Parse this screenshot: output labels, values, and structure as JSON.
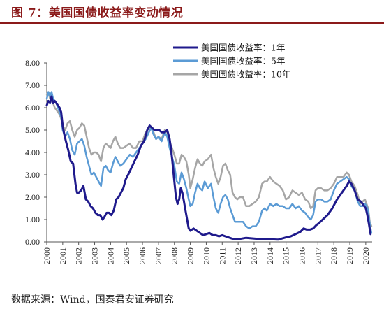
{
  "header": {
    "title": "图 7：美国国债收益率变动情况"
  },
  "footer": {
    "source": "数据来源：Wind，国泰君安证券研究"
  },
  "chart_data": {
    "type": "line",
    "title": "",
    "xlabel": "",
    "ylabel": "",
    "ylim": [
      0,
      8
    ],
    "xlim": [
      2000,
      2020.4
    ],
    "yticks": [
      "0.00",
      "1.00",
      "2.00",
      "3.00",
      "4.00",
      "5.00",
      "6.00",
      "7.00",
      "8.00"
    ],
    "xticks": [
      "2000",
      "2001",
      "2002",
      "2003",
      "2004",
      "2005",
      "2006",
      "2007",
      "2008",
      "2009",
      "2010",
      "2011",
      "2012",
      "2013",
      "2014",
      "2015",
      "2016",
      "2017",
      "2018",
      "2019",
      "2020"
    ],
    "legend_position": "top-right",
    "grid": false,
    "series": [
      {
        "name": "美国国债收益率：1年",
        "color": "#1f1a8c",
        "x": [
          2000.0,
          2000.1,
          2000.2,
          2000.3,
          2000.4,
          2000.5,
          2000.6,
          2000.7,
          2000.8,
          2000.9,
          2001.0,
          2001.1,
          2001.2,
          2001.35,
          2001.5,
          2001.65,
          2001.8,
          2001.9,
          2002.0,
          2002.15,
          2002.3,
          2002.45,
          2002.6,
          2002.75,
          2002.9,
          2003.05,
          2003.2,
          2003.35,
          2003.5,
          2003.6,
          2003.75,
          2003.9,
          2004.05,
          2004.2,
          2004.35,
          2004.5,
          2004.65,
          2004.8,
          2004.95,
          2005.1,
          2005.3,
          2005.5,
          2005.7,
          2005.9,
          2006.1,
          2006.3,
          2006.45,
          2006.6,
          2006.75,
          2006.9,
          2007.05,
          2007.2,
          2007.4,
          2007.55,
          2007.7,
          2007.8,
          2007.9,
          2008.0,
          2008.1,
          2008.2,
          2008.3,
          2008.4,
          2008.5,
          2008.6,
          2008.7,
          2008.8,
          2008.9,
          2009.0,
          2009.2,
          2009.4,
          2009.6,
          2009.8,
          2010.0,
          2010.2,
          2010.4,
          2010.6,
          2010.8,
          2011.0,
          2011.2,
          2011.4,
          2011.6,
          2011.8,
          2012.0,
          2012.5,
          2013.0,
          2013.5,
          2014.0,
          2014.5,
          2015.0,
          2015.3,
          2015.6,
          2015.9,
          2016.1,
          2016.3,
          2016.5,
          2016.7,
          2016.9,
          2017.0,
          2017.3,
          2017.6,
          2017.9,
          2018.2,
          2018.5,
          2018.8,
          2018.95,
          2019.1,
          2019.3,
          2019.5,
          2019.7,
          2019.9,
          2020.0,
          2020.1,
          2020.2,
          2020.3
        ],
        "values": [
          6.1,
          6.3,
          6.2,
          6.5,
          6.2,
          6.3,
          6.2,
          6.1,
          6.0,
          5.8,
          5.2,
          4.8,
          4.5,
          4.1,
          3.6,
          3.5,
          2.6,
          2.2,
          2.2,
          2.3,
          2.5,
          1.9,
          1.8,
          1.6,
          1.5,
          1.3,
          1.2,
          1.2,
          1.0,
          1.1,
          1.3,
          1.3,
          1.2,
          1.4,
          1.9,
          2.0,
          2.2,
          2.4,
          2.8,
          3.0,
          3.3,
          3.6,
          3.9,
          4.3,
          4.5,
          5.0,
          5.2,
          5.1,
          5.0,
          5.0,
          5.0,
          4.9,
          4.9,
          5.0,
          4.6,
          4.1,
          3.4,
          2.7,
          2.0,
          1.7,
          1.9,
          2.4,
          2.2,
          1.8,
          1.4,
          1.0,
          0.6,
          0.5,
          0.6,
          0.5,
          0.4,
          0.3,
          0.35,
          0.4,
          0.3,
          0.3,
          0.25,
          0.3,
          0.25,
          0.2,
          0.15,
          0.12,
          0.12,
          0.18,
          0.15,
          0.12,
          0.12,
          0.1,
          0.2,
          0.25,
          0.35,
          0.45,
          0.6,
          0.55,
          0.55,
          0.6,
          0.75,
          0.8,
          1.0,
          1.2,
          1.5,
          1.9,
          2.2,
          2.5,
          2.7,
          2.6,
          2.3,
          1.9,
          1.8,
          1.6,
          1.5,
          1.2,
          0.8,
          0.35
        ]
      },
      {
        "name": "美国国债收益率：5年",
        "color": "#5b9bd5",
        "x": [
          2000.0,
          2000.1,
          2000.2,
          2000.3,
          2000.4,
          2000.5,
          2000.6,
          2000.7,
          2000.8,
          2000.9,
          2001.0,
          2001.15,
          2001.3,
          2001.45,
          2001.6,
          2001.75,
          2001.9,
          2002.05,
          2002.2,
          2002.35,
          2002.5,
          2002.65,
          2002.8,
          2002.95,
          2003.1,
          2003.25,
          2003.4,
          2003.55,
          2003.7,
          2003.85,
          2004.0,
          2004.15,
          2004.3,
          2004.45,
          2004.6,
          2004.8,
          2005.0,
          2005.2,
          2005.4,
          2005.6,
          2005.8,
          2006.0,
          2006.2,
          2006.4,
          2006.55,
          2006.7,
          2006.85,
          2007.0,
          2007.2,
          2007.4,
          2007.55,
          2007.7,
          2007.85,
          2008.0,
          2008.15,
          2008.3,
          2008.45,
          2008.6,
          2008.75,
          2008.9,
          2009.0,
          2009.15,
          2009.3,
          2009.45,
          2009.6,
          2009.75,
          2009.9,
          2010.1,
          2010.3,
          2010.45,
          2010.6,
          2010.75,
          2010.9,
          2011.05,
          2011.2,
          2011.35,
          2011.5,
          2011.65,
          2011.8,
          2011.95,
          2012.1,
          2012.3,
          2012.5,
          2012.7,
          2012.9,
          2013.1,
          2013.3,
          2013.5,
          2013.65,
          2013.8,
          2014.0,
          2014.2,
          2014.4,
          2014.6,
          2014.8,
          2015.0,
          2015.2,
          2015.4,
          2015.6,
          2015.8,
          2016.0,
          2016.2,
          2016.4,
          2016.55,
          2016.7,
          2016.85,
          2017.0,
          2017.2,
          2017.4,
          2017.6,
          2017.8,
          2018.0,
          2018.2,
          2018.4,
          2018.6,
          2018.8,
          2018.95,
          2019.1,
          2019.3,
          2019.5,
          2019.65,
          2019.8,
          2019.95,
          2020.05,
          2020.15,
          2020.25,
          2020.35
        ],
        "values": [
          6.4,
          6.7,
          6.5,
          6.7,
          6.4,
          6.3,
          6.2,
          6.0,
          5.8,
          5.6,
          5.0,
          4.7,
          4.9,
          4.6,
          4.1,
          3.9,
          4.4,
          4.5,
          4.6,
          4.3,
          3.8,
          3.4,
          3.0,
          3.1,
          2.9,
          2.7,
          2.5,
          3.3,
          3.4,
          3.2,
          3.1,
          3.5,
          3.8,
          3.6,
          3.4,
          3.5,
          3.7,
          3.9,
          3.8,
          4.0,
          4.2,
          4.4,
          4.6,
          4.9,
          5.1,
          4.8,
          4.6,
          4.7,
          4.5,
          4.9,
          4.7,
          4.2,
          3.8,
          3.4,
          2.7,
          2.6,
          3.1,
          2.8,
          2.4,
          1.9,
          1.6,
          1.7,
          2.2,
          2.6,
          2.4,
          2.3,
          2.7,
          2.4,
          2.6,
          2.0,
          1.5,
          1.3,
          1.7,
          2.0,
          2.1,
          1.9,
          1.5,
          1.2,
          0.9,
          0.9,
          0.9,
          0.9,
          0.7,
          0.6,
          0.7,
          0.7,
          0.9,
          1.4,
          1.5,
          1.4,
          1.7,
          1.6,
          1.7,
          1.6,
          1.6,
          1.5,
          1.5,
          1.7,
          1.5,
          1.6,
          1.4,
          1.3,
          1.1,
          1.0,
          1.2,
          1.8,
          1.9,
          1.9,
          1.8,
          1.8,
          1.9,
          2.3,
          2.6,
          2.7,
          2.8,
          2.9,
          2.8,
          2.5,
          2.3,
          1.8,
          1.6,
          1.6,
          1.7,
          1.6,
          1.4,
          0.8,
          0.4
        ]
      },
      {
        "name": "美国国债收益率：10年",
        "color": "#a6a6a6",
        "x": [
          2000.0,
          2000.1,
          2000.2,
          2000.3,
          2000.4,
          2000.5,
          2000.6,
          2000.7,
          2000.8,
          2000.9,
          2001.0,
          2001.15,
          2001.3,
          2001.45,
          2001.6,
          2001.75,
          2001.9,
          2002.05,
          2002.2,
          2002.35,
          2002.5,
          2002.65,
          2002.8,
          2002.95,
          2003.1,
          2003.25,
          2003.4,
          2003.55,
          2003.7,
          2003.85,
          2004.0,
          2004.15,
          2004.3,
          2004.45,
          2004.6,
          2004.8,
          2005.0,
          2005.2,
          2005.4,
          2005.6,
          2005.8,
          2006.0,
          2006.2,
          2006.4,
          2006.55,
          2006.7,
          2006.85,
          2007.0,
          2007.2,
          2007.4,
          2007.55,
          2007.7,
          2007.85,
          2008.0,
          2008.15,
          2008.3,
          2008.45,
          2008.6,
          2008.75,
          2008.9,
          2009.0,
          2009.15,
          2009.3,
          2009.45,
          2009.6,
          2009.75,
          2009.9,
          2010.1,
          2010.3,
          2010.45,
          2010.6,
          2010.75,
          2010.9,
          2011.05,
          2011.2,
          2011.35,
          2011.5,
          2011.65,
          2011.8,
          2011.95,
          2012.1,
          2012.3,
          2012.5,
          2012.7,
          2012.9,
          2013.1,
          2013.3,
          2013.5,
          2013.65,
          2013.8,
          2014.0,
          2014.2,
          2014.4,
          2014.6,
          2014.8,
          2015.0,
          2015.2,
          2015.4,
          2015.6,
          2015.8,
          2016.0,
          2016.2,
          2016.4,
          2016.55,
          2016.7,
          2016.85,
          2017.0,
          2017.2,
          2017.4,
          2017.6,
          2017.8,
          2018.0,
          2018.2,
          2018.4,
          2018.6,
          2018.8,
          2018.95,
          2019.1,
          2019.3,
          2019.5,
          2019.65,
          2019.8,
          2019.95,
          2020.05,
          2020.15,
          2020.25,
          2020.35
        ],
        "values": [
          6.6,
          6.7,
          6.4,
          6.3,
          6.2,
          6.0,
          5.9,
          5.8,
          5.7,
          5.5,
          5.2,
          5.0,
          5.3,
          5.4,
          5.0,
          4.7,
          5.0,
          5.1,
          5.3,
          5.2,
          4.7,
          4.2,
          3.9,
          4.0,
          4.0,
          3.9,
          3.6,
          4.2,
          4.4,
          4.3,
          4.2,
          4.5,
          4.7,
          4.4,
          4.2,
          4.2,
          4.3,
          4.4,
          4.2,
          4.2,
          4.5,
          4.5,
          4.9,
          5.1,
          5.1,
          4.9,
          4.6,
          4.7,
          4.6,
          5.0,
          4.9,
          4.5,
          4.2,
          3.9,
          3.5,
          3.5,
          3.9,
          3.8,
          3.6,
          3.0,
          2.4,
          2.8,
          3.3,
          3.7,
          3.5,
          3.4,
          3.6,
          3.7,
          3.9,
          3.3,
          2.9,
          2.6,
          2.9,
          3.4,
          3.5,
          3.2,
          3.0,
          2.2,
          2.0,
          1.9,
          2.0,
          2.0,
          1.6,
          1.6,
          1.7,
          1.8,
          2.0,
          2.6,
          2.7,
          2.7,
          2.9,
          2.7,
          2.6,
          2.5,
          2.3,
          1.9,
          2.0,
          2.3,
          2.2,
          2.1,
          2.2,
          1.9,
          1.8,
          1.5,
          1.6,
          2.3,
          2.4,
          2.4,
          2.3,
          2.3,
          2.4,
          2.6,
          2.9,
          2.9,
          2.9,
          3.1,
          3.0,
          2.7,
          2.5,
          2.1,
          1.7,
          1.8,
          1.9,
          1.7,
          1.5,
          0.9,
          0.7
        ]
      }
    ]
  }
}
